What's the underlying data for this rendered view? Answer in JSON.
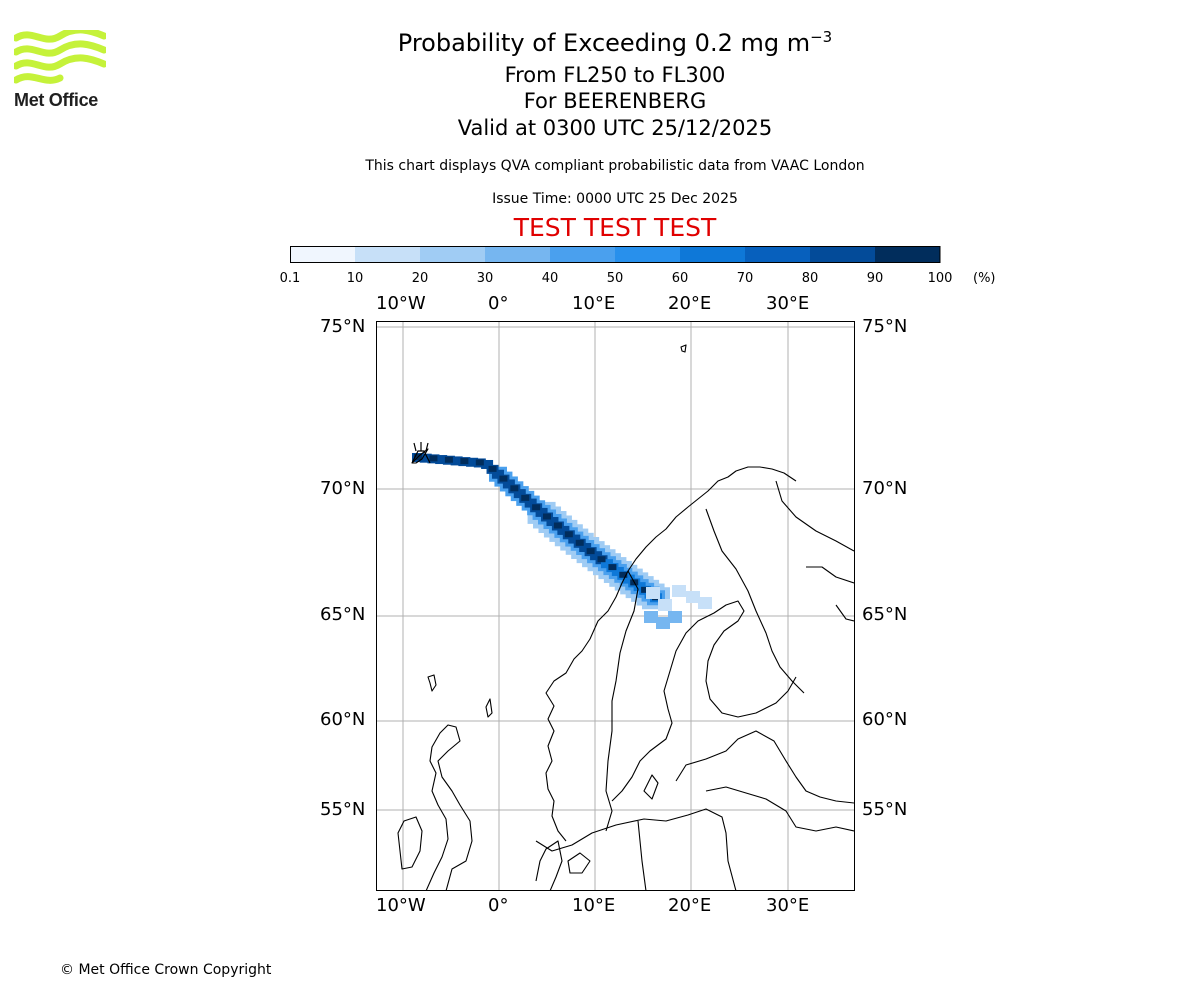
{
  "logo": {
    "name": "met-office-logo",
    "text": "Met Office",
    "color": "#c5f23a",
    "text_color": "#1f1f1f"
  },
  "header": {
    "title_prefix": "Probability of Exceeding 0.2 mg m",
    "title_superscript": "−3",
    "level_line": "From FL250 to FL300",
    "volcano_line": "For BEERENBERG",
    "valid_line": "Valid at 0300 UTC 25/12/2025",
    "source_note": "This chart displays QVA compliant probabilistic data from VAAC London",
    "issue_time": "Issue Time: 0000 UTC 25 Dec 2025",
    "test_banner": "TEST TEST TEST",
    "test_color": "#e00000"
  },
  "colorbar": {
    "ticks": [
      "0.1",
      "10",
      "20",
      "30",
      "40",
      "50",
      "60",
      "70",
      "80",
      "90",
      "100"
    ],
    "unit": "(%)",
    "colors": [
      "#f0f6fe",
      "#c7e0f8",
      "#a0ccf4",
      "#76b6f0",
      "#4aa0ee",
      "#2890ec",
      "#0e78d8",
      "#0760bd",
      "#034b99",
      "#012d5c"
    ]
  },
  "map": {
    "lon_labels": [
      "10°W",
      "0°",
      "10°E",
      "20°E",
      "30°E"
    ],
    "lat_labels": [
      "75°N",
      "70°N",
      "65°N",
      "60°N",
      "55°N"
    ],
    "volcano_symbol": "volcano-icon",
    "gridline_color": "#b0b0b0",
    "coastline_color": "#000000"
  },
  "footer": {
    "copyright": "© Met Office Crown Copyright"
  }
}
